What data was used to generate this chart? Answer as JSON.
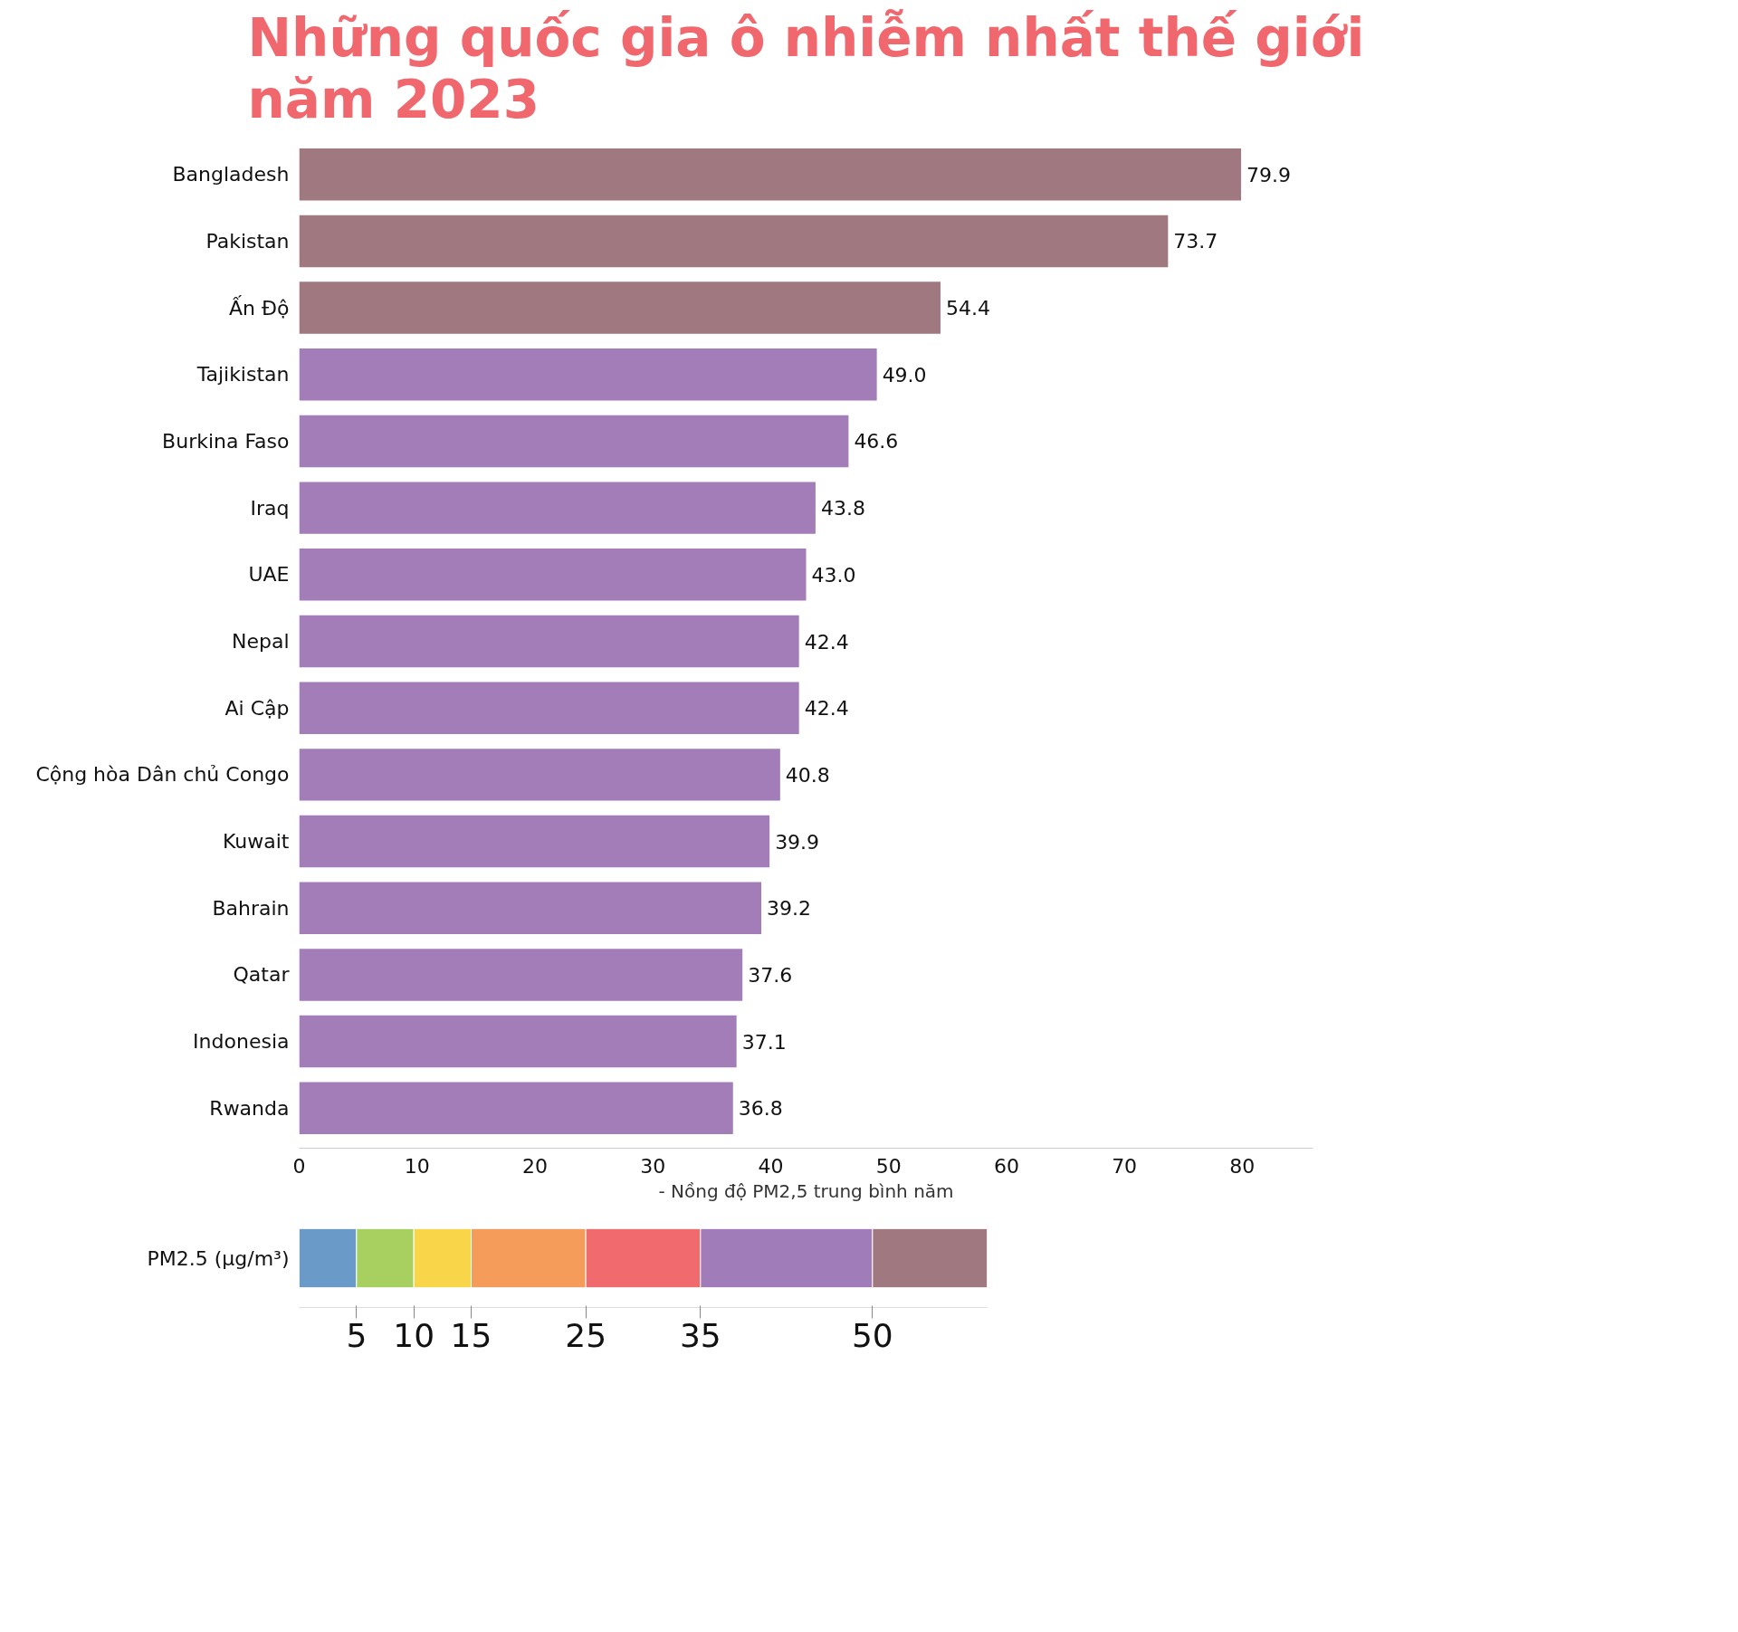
{
  "chart_data": [
    {
      "type": "bar",
      "orientation": "horizontal",
      "title": "Những quốc gia ô nhiễm nhất thế giới năm 2023",
      "xlabel": "- Nồng độ PM2,5 trung bình năm",
      "categories": [
        "Bangladesh",
        "Pakistan",
        "Ấn Độ",
        "Tajikistan",
        "Burkina Faso",
        "Iraq",
        "UAE",
        "Nepal",
        "Ai Cập",
        "Cộng hòa Dân chủ Congo",
        "Kuwait",
        "Bahrain",
        "Qatar",
        "Indonesia",
        "Rwanda"
      ],
      "values": [
        79.9,
        73.7,
        54.4,
        49.0,
        46.6,
        43.8,
        43.0,
        42.4,
        42.4,
        40.8,
        39.9,
        39.2,
        37.6,
        37.1,
        36.8
      ],
      "colors": [
        "#a07880",
        "#a07880",
        "#a07880",
        "#a37db8",
        "#a37db8",
        "#a37db8",
        "#a37db8",
        "#a37db8",
        "#a37db8",
        "#a37db8",
        "#a37db8",
        "#a37db8",
        "#a37db8",
        "#a37db8",
        "#a37db8"
      ],
      "value_labels": [
        "79.9",
        "73.7",
        "54.4",
        "49.0",
        "46.6",
        "43.8",
        "43.0",
        "42.4",
        "42.4",
        "40.8",
        "39.9",
        "39.2",
        "37.6",
        "37.1",
        "36.8"
      ],
      "xlim": [
        0,
        86
      ],
      "xticks": [
        0,
        10,
        20,
        30,
        40,
        50,
        60,
        70,
        80
      ]
    },
    {
      "type": "bar",
      "orientation": "horizontal",
      "stacked": true,
      "title": "PM2.5 (µg/m³)",
      "categories": [
        null
      ],
      "tick_labels": "x",
      "xlim": [
        0,
        60
      ],
      "xticks": [
        5,
        10,
        15,
        25,
        35,
        50
      ],
      "series": [
        {
          "color": "#6a9bc8",
          "values": [
            5
          ]
        },
        {
          "color": "#a8d060",
          "values": [
            5
          ]
        },
        {
          "color": "#f9d54a",
          "values": [
            5
          ]
        },
        {
          "color": "#f59c5a",
          "values": [
            10
          ]
        },
        {
          "color": "#f06a6e",
          "values": [
            10
          ]
        },
        {
          "color": "#a07db8",
          "values": [
            15
          ]
        },
        {
          "color": "#a07880",
          "values": [
            10
          ]
        }
      ]
    }
  ]
}
